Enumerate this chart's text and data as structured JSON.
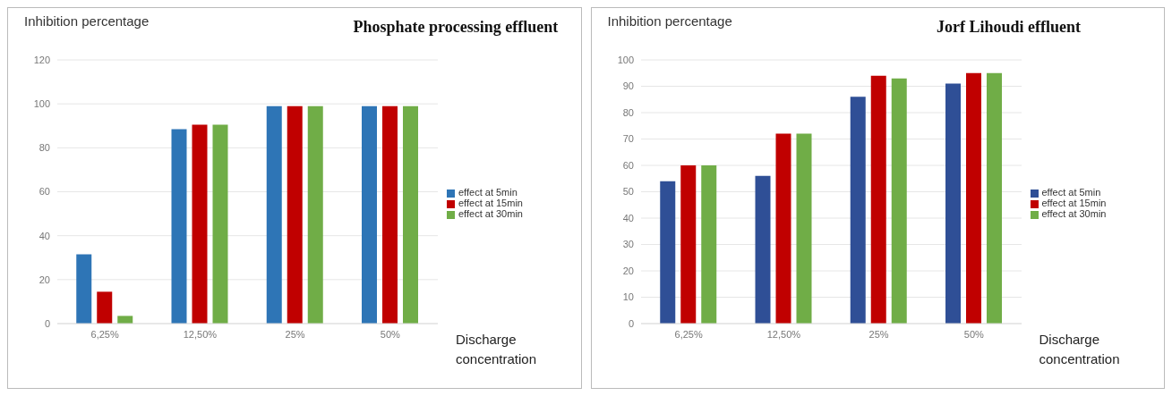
{
  "chart_data": [
    {
      "type": "bar",
      "title": "Phosphate processing effluent",
      "ylabel": "Inhibition percentage",
      "xlabel": "Discharge concentration",
      "categories": [
        "6,25%",
        "12,50%",
        "25%",
        "50%"
      ],
      "ylim": [
        0,
        120
      ],
      "yticks": [
        0,
        20,
        40,
        60,
        80,
        100,
        120
      ],
      "grid": "y",
      "legend": "right",
      "series": [
        {
          "name": "effect at 5min",
          "color": "#2e75b6",
          "values": [
            31.5,
            88.5,
            99,
            99
          ]
        },
        {
          "name": "effect at 15min",
          "color": "#c00000",
          "values": [
            14.5,
            90.5,
            99,
            99
          ]
        },
        {
          "name": "effect at 30min",
          "color": "#70ad47",
          "values": [
            3.5,
            90.5,
            99,
            99
          ]
        }
      ]
    },
    {
      "type": "bar",
      "title": "Jorf Lihoudi effluent",
      "ylabel": "Inhibition percentage",
      "xlabel": "Discharge concentration",
      "categories": [
        "6,25%",
        "12,50%",
        "25%",
        "50%"
      ],
      "ylim": [
        0,
        100
      ],
      "yticks": [
        0,
        10,
        20,
        30,
        40,
        50,
        60,
        70,
        80,
        90,
        100
      ],
      "grid": "y",
      "legend": "right",
      "series": [
        {
          "name": "effect at 5min",
          "color": "#2f4f96",
          "values": [
            54,
            56,
            86,
            91
          ]
        },
        {
          "name": "effect at 15min",
          "color": "#c00000",
          "values": [
            60,
            72,
            94,
            95
          ]
        },
        {
          "name": "effect at 30min",
          "color": "#70ad47",
          "values": [
            60,
            72,
            93,
            95
          ]
        }
      ]
    }
  ]
}
